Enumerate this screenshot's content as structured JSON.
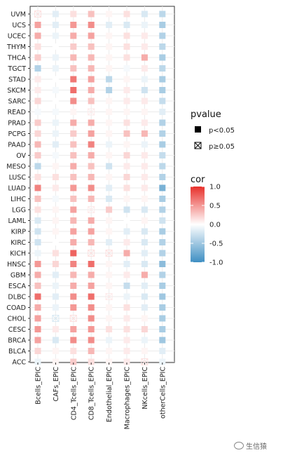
{
  "chart_data": {
    "type": "heatmap",
    "categories_y": [
      "UVM",
      "UCS",
      "UCEC",
      "THYM",
      "THCA",
      "TGCT",
      "STAD",
      "SKCM",
      "SARC",
      "READ",
      "PRAD",
      "PCPG",
      "PAAD",
      "OV",
      "MESO",
      "LUSC",
      "LUAD",
      "LIHC",
      "LGG",
      "LAML",
      "KIRP",
      "KIRC",
      "KICH",
      "HNSC",
      "GBM",
      "ESCA",
      "DLBC",
      "COAD",
      "CHOL",
      "CESC",
      "BRCA",
      "BLCA",
      "ACC"
    ],
    "categories_x": [
      "Bcells_EPIC",
      "CAFs_EPIC",
      "CD4_Tcells_EPIC",
      "CD8_Tcells_EPIC",
      "Endothelial_EPIC",
      "Macrophages_EPIC",
      "NKcells_EPIC",
      "otherCells_EPIC"
    ],
    "cor": [
      [
        0.15,
        -0.15,
        0.15,
        0.3,
        0.05,
        0.15,
        -0.2,
        -0.35
      ],
      [
        0.45,
        -0.15,
        0.5,
        0.55,
        -0.15,
        -0.2,
        -0.1,
        -0.45
      ],
      [
        0.4,
        -0.1,
        0.4,
        0.45,
        0.05,
        0.15,
        0.1,
        -0.4
      ],
      [
        0.15,
        0.0,
        0.25,
        0.3,
        0.05,
        0.15,
        0.1,
        -0.35
      ],
      [
        0.25,
        -0.1,
        0.35,
        0.35,
        0.05,
        0.15,
        0.4,
        -0.45
      ],
      [
        -0.4,
        -0.1,
        0.3,
        0.35,
        0.05,
        -0.05,
        0.1,
        -0.35
      ],
      [
        0.1,
        0.0,
        0.65,
        0.45,
        -0.35,
        0.05,
        -0.1,
        -0.45
      ],
      [
        0.1,
        -0.05,
        0.7,
        0.4,
        -0.4,
        0.1,
        -0.25,
        -0.45
      ],
      [
        0.2,
        0.0,
        0.55,
        0.3,
        0.05,
        0.1,
        0.1,
        -0.3
      ],
      [
        -0.05,
        -0.05,
        0.05,
        0.1,
        0.05,
        0.05,
        0.05,
        -0.15
      ],
      [
        0.25,
        -0.1,
        0.4,
        0.4,
        0.05,
        0.15,
        0.1,
        -0.4
      ],
      [
        0.2,
        -0.1,
        0.25,
        0.45,
        0.05,
        0.3,
        0.35,
        -0.4
      ],
      [
        0.35,
        -0.15,
        0.3,
        0.6,
        -0.1,
        0.05,
        -0.1,
        -0.45
      ],
      [
        0.25,
        -0.05,
        0.3,
        0.4,
        0.05,
        0.2,
        0.1,
        -0.3
      ],
      [
        -0.35,
        0.05,
        0.4,
        0.3,
        -0.25,
        0.1,
        0.1,
        -0.35
      ],
      [
        0.15,
        0.15,
        0.3,
        0.35,
        0.05,
        0.2,
        0.1,
        -0.4
      ],
      [
        0.6,
        0.1,
        0.5,
        0.55,
        -0.15,
        0.15,
        0.1,
        -0.7
      ],
      [
        0.3,
        -0.05,
        0.3,
        0.35,
        -0.2,
        0.05,
        0.05,
        -0.45
      ],
      [
        0.15,
        0.05,
        0.45,
        0.1,
        0.25,
        -0.25,
        -0.2,
        -0.4
      ],
      [
        -0.2,
        0.05,
        0.35,
        0.4,
        0.05,
        0.0,
        0.05,
        -0.25
      ],
      [
        -0.25,
        0.05,
        0.45,
        0.45,
        0.05,
        -0.15,
        -0.2,
        -0.45
      ],
      [
        -0.25,
        0.0,
        0.4,
        0.35,
        -0.15,
        0.1,
        -0.2,
        -0.4
      ],
      [
        -0.1,
        0.15,
        0.75,
        0.15,
        0.15,
        0.4,
        -0.15,
        -0.4
      ],
      [
        0.5,
        0.2,
        0.6,
        0.7,
        0.05,
        -0.15,
        -0.2,
        -0.6
      ],
      [
        0.4,
        -0.15,
        0.35,
        0.4,
        0.05,
        0.1,
        0.4,
        -0.4
      ],
      [
        0.3,
        -0.1,
        0.4,
        0.45,
        0.05,
        -0.3,
        -0.15,
        -0.45
      ],
      [
        0.7,
        -0.15,
        0.55,
        0.7,
        0.1,
        -0.1,
        -0.2,
        -0.5
      ],
      [
        0.4,
        -0.1,
        0.5,
        0.55,
        0.05,
        0.15,
        -0.15,
        -0.45
      ],
      [
        0.45,
        -0.2,
        0.15,
        0.55,
        0.05,
        0.1,
        0.05,
        -0.45
      ],
      [
        0.5,
        0.1,
        0.45,
        0.5,
        0.15,
        0.15,
        0.2,
        -0.45
      ],
      [
        0.45,
        -0.2,
        0.55,
        0.55,
        -0.1,
        0.1,
        -0.1,
        -0.5
      ],
      [
        0.2,
        0.05,
        0.15,
        0.35,
        0.05,
        0.1,
        0.05,
        -0.15
      ],
      [
        -0.1,
        0.05,
        0.25,
        0.15,
        0.05,
        0.1,
        0.15,
        -0.1
      ]
    ],
    "nonsig": [
      [
        0
      ],
      [],
      [],
      [],
      [],
      [],
      [],
      [],
      [],
      [
        3
      ],
      [],
      [],
      [],
      [],
      [],
      [],
      [],
      [],
      [
        3
      ],
      [],
      [],
      [],
      [
        3,
        4
      ],
      [],
      [],
      [],
      [
        4
      ],
      [],
      [
        1,
        2
      ],
      [],
      [],
      [],
      [
        6
      ]
    ],
    "legend": {
      "pvalue_title": "pvalue",
      "pvalue_items": [
        "p<0.05",
        "p≥0.05"
      ],
      "cor_title": "cor",
      "cor_ticks": [
        1.0,
        0.5,
        0.0,
        -0.5,
        -1.0
      ],
      "cor_tick_labels": [
        "1.0",
        "0.5",
        "0.0",
        "-0.5",
        "-1.0"
      ],
      "colors": {
        "high": "#e8302b",
        "mid": "#ffffff",
        "low": "#3f8fc3"
      }
    },
    "grid": true
  },
  "watermark": "生信猿"
}
